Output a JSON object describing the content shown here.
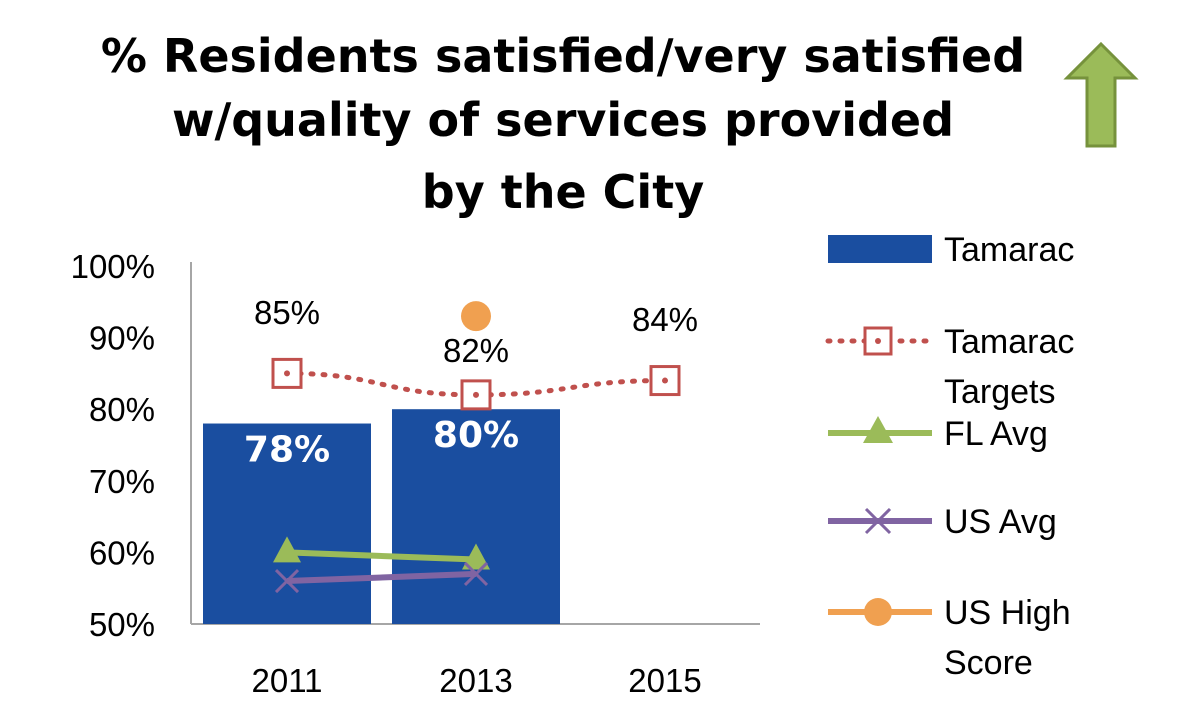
{
  "chart_data": {
    "type": "bar",
    "title": [
      "% Residents satisfied/very satisfied",
      "w/quality of services provided",
      "by the City"
    ],
    "categories": [
      "2011",
      "2013",
      "2015"
    ],
    "ylim": [
      50,
      100
    ],
    "yticks": [
      "100%",
      "90%",
      "80%",
      "70%",
      "60%",
      "50%"
    ],
    "ytick_values": [
      100,
      90,
      80,
      70,
      60,
      50
    ],
    "series": [
      {
        "name": "Tamarac",
        "kind": "bar",
        "color": "#1a4ea0",
        "values": [
          78,
          80,
          null
        ],
        "labels": [
          "78%",
          "80%",
          ""
        ]
      },
      {
        "name": "Tamarac Targets",
        "kind": "line-dotted-square",
        "color": "#c0504d",
        "values": [
          85,
          82,
          84
        ],
        "labels": [
          "85%",
          "82%",
          "84%"
        ]
      },
      {
        "name": "FL Avg",
        "kind": "line-triangle",
        "color": "#9bbb59",
        "values": [
          60,
          59,
          null
        ]
      },
      {
        "name": "US Avg",
        "kind": "line-x",
        "color": "#8064a2",
        "values": [
          56,
          57,
          null
        ]
      },
      {
        "name": "US High Score",
        "kind": "line-circle",
        "color": "#f0a050",
        "values": [
          null,
          93,
          null
        ]
      }
    ],
    "legend": [
      {
        "lines": [
          "Tamarac"
        ],
        "marker": "bar"
      },
      {
        "lines": [
          "Tamarac",
          "Targets"
        ],
        "marker": "dotted-square"
      },
      {
        "lines": [
          "FL Avg"
        ],
        "marker": "triangle"
      },
      {
        "lines": [
          "US Avg"
        ],
        "marker": "x"
      },
      {
        "lines": [
          "US High",
          "Score"
        ],
        "marker": "circle"
      }
    ],
    "legend_position": "right",
    "trend_arrow": "up",
    "colors": {
      "arrow_fill": "#9bbb59",
      "arrow_stroke": "#76923c",
      "axis": "#a6a6a6"
    }
  }
}
